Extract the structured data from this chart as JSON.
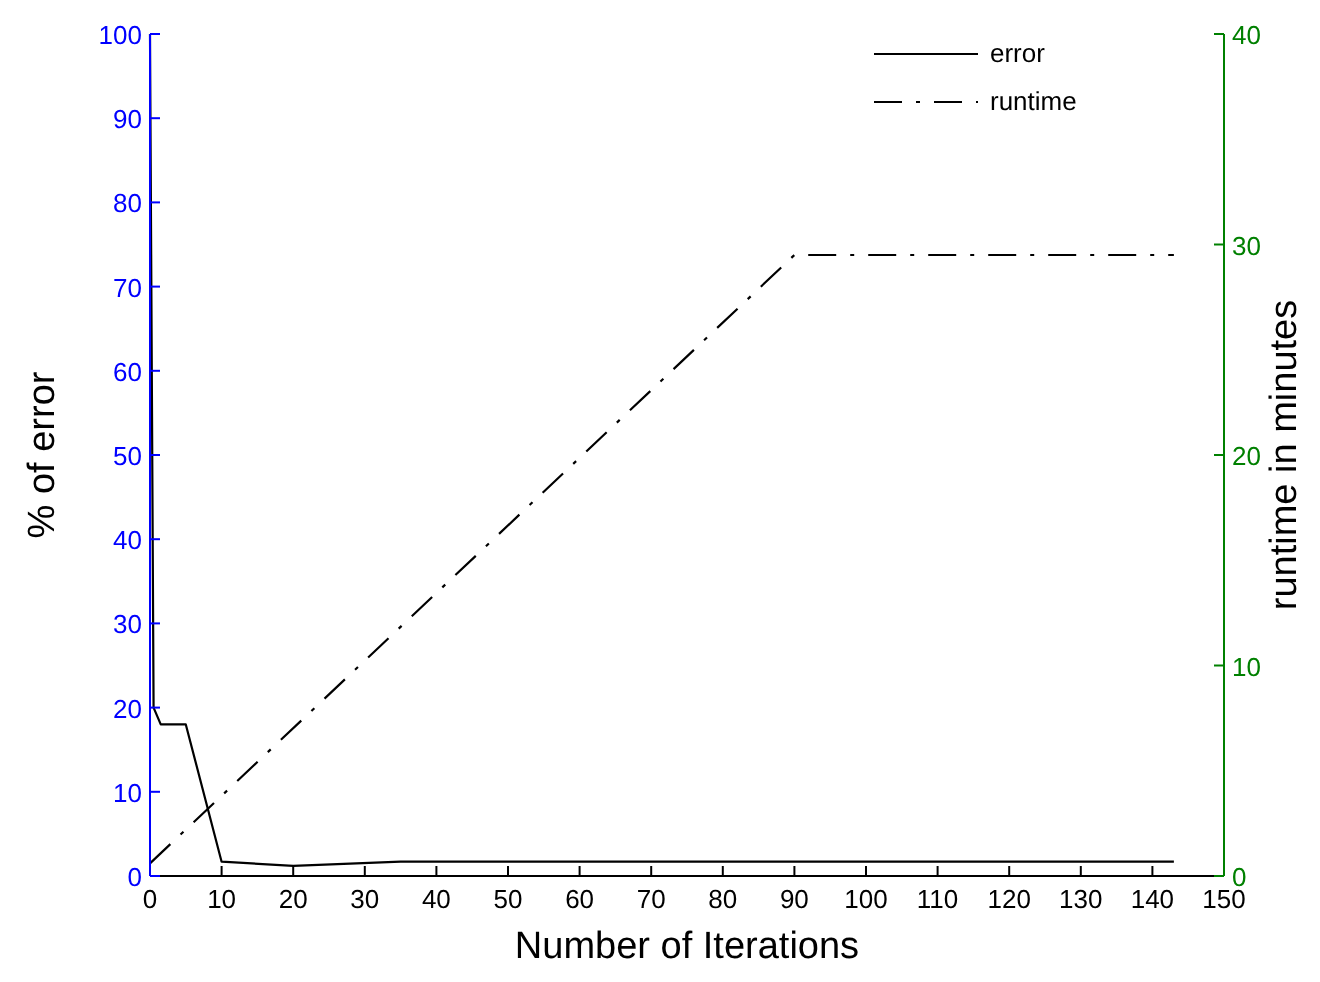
{
  "chart_data": {
    "type": "line",
    "xlabel": "Number of Iterations",
    "ylabel": "% of error",
    "y2label": "runtime in minutes",
    "xlim": [
      0,
      150
    ],
    "xticks": [
      0,
      10,
      20,
      30,
      40,
      50,
      60,
      70,
      80,
      90,
      100,
      110,
      120,
      130,
      140,
      150
    ],
    "ylim": [
      0,
      100
    ],
    "yticks": [
      0,
      10,
      20,
      30,
      40,
      50,
      60,
      70,
      80,
      90,
      100
    ],
    "y2lim": [
      0,
      40
    ],
    "y2ticks": [
      0,
      10,
      20,
      30,
      40
    ],
    "legend": "top right",
    "grid": false,
    "marker": "none",
    "series": [
      {
        "name": "error",
        "color": "#000000",
        "line_style": "solid",
        "x": [
          0,
          0.5,
          1.5,
          5,
          10,
          20,
          35,
          143
        ],
        "values": [
          100,
          20,
          18,
          18,
          1.7,
          1.2,
          1.7,
          1.7
        ]
      },
      {
        "name": "runtime",
        "color": "#000000",
        "line_style": "dashed",
        "axis": "y2",
        "x": [
          0,
          90,
          143
        ],
        "values": [
          0.6,
          29.5,
          29.5
        ]
      }
    ]
  }
}
